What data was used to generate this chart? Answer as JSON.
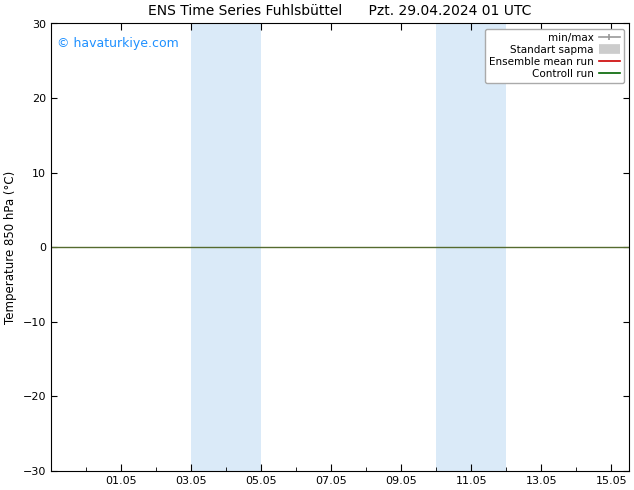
{
  "title": "ENS Time Series Fuhlsbüttel      Pzt. 29.04.2024 01 UTC",
  "ylabel": "Temperature 850 hPa (°C)",
  "ylim": [
    -30,
    30
  ],
  "yticks": [
    -30,
    -20,
    -10,
    0,
    10,
    20,
    30
  ],
  "xlim_start": 0.0,
  "xlim_end": 16.5,
  "xtick_positions": [
    2,
    4,
    6,
    8,
    10,
    12,
    14,
    16
  ],
  "xtick_labels": [
    "01.05",
    "03.05",
    "05.05",
    "07.05",
    "09.05",
    "11.05",
    "13.05",
    "15.05"
  ],
  "shaded_bands": [
    {
      "xmin": 4.0,
      "xmax": 6.0
    },
    {
      "xmin": 11.0,
      "xmax": 13.0
    }
  ],
  "shade_color": "#daeaf8",
  "zero_line_color": "#556b2f",
  "zero_line_y": 0,
  "watermark": "© havaturkiye.com",
  "watermark_color": "#1e90ff",
  "legend_labels": [
    "min/max",
    "Standart sapma",
    "Ensemble mean run",
    "Controll run"
  ],
  "legend_colors": [
    "#999999",
    "#cccccc",
    "#cc0000",
    "#006400"
  ],
  "background_color": "#ffffff",
  "title_fontsize": 10,
  "ylabel_fontsize": 8.5,
  "tick_fontsize": 8,
  "legend_fontsize": 7.5
}
